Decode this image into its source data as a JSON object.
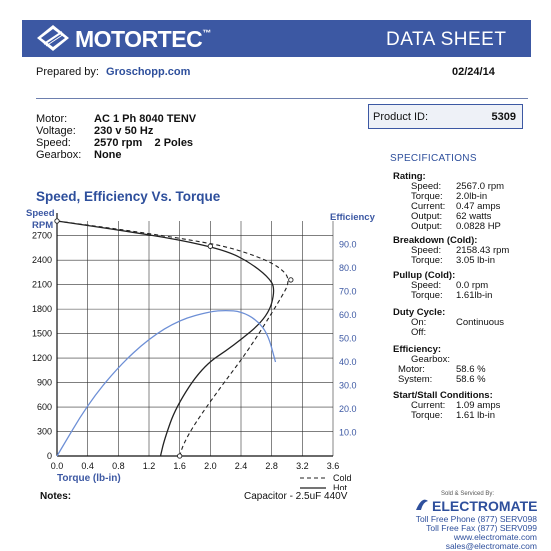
{
  "header": {
    "brand": "MOTORTEC",
    "brand_mark": "™",
    "title": "DATA SHEET"
  },
  "prepared": {
    "label": "Prepared by:",
    "value": "Groschopp.com"
  },
  "date": "02/24/14",
  "motor_info": [
    {
      "label": "Motor:",
      "value": "AC 1 Ph  8040 TENV"
    },
    {
      "label": "Voltage:",
      "value": "230 v 50 Hz"
    },
    {
      "label": "Speed:",
      "value": "2570 rpm    2 Poles"
    },
    {
      "label": "Gearbox:",
      "value": "None"
    }
  ],
  "product": {
    "label": "Product ID:",
    "value": "5309"
  },
  "specifications": {
    "title": "SPECIFICATIONS",
    "sections": [
      {
        "title": "Rating:",
        "rows": [
          {
            "k": "Speed:",
            "v": "2567.0 rpm"
          },
          {
            "k": "Torque:",
            "v": "2.0lb-in"
          },
          {
            "k": "Current:",
            "v": "0.47 amps"
          },
          {
            "k": "Output:",
            "v": "62 watts"
          },
          {
            "k": "Output:",
            "v": "0.0828 HP"
          }
        ]
      },
      {
        "title": "Breakdown (Cold):",
        "rows": [
          {
            "k": "Speed:",
            "v": "2158.43 rpm"
          },
          {
            "k": "Torque:",
            "v": "3.05 lb-in"
          }
        ]
      },
      {
        "title": "Pullup (Cold):",
        "rows": [
          {
            "k": "Speed:",
            "v": "0.0 rpm"
          },
          {
            "k": "Torque:",
            "v": "1.61lb-in"
          }
        ]
      },
      {
        "title": "Duty Cycle:",
        "rows": [
          {
            "k": "On:",
            "v": "Continuous"
          },
          {
            "k": "Off:",
            "v": ""
          }
        ]
      },
      {
        "title": "Efficiency:",
        "rows": [
          {
            "k": "Gearbox:",
            "v": ""
          },
          {
            "k": "Motor:",
            "v": "58.6 %"
          },
          {
            "k": "System:",
            "v": "58.6 %"
          }
        ]
      },
      {
        "title": "Start/Stall Conditions:",
        "rows": [
          {
            "k": "Current:",
            "v": "1.09 amps"
          },
          {
            "k": "Torque:",
            "v": "1.61 lb-in"
          }
        ]
      }
    ]
  },
  "chart_data": {
    "type": "line",
    "title": "Speed, Efficiency Vs. Torque",
    "xlabel": "Torque  (lb-in)",
    "ylabel_left": "Speed RPM",
    "ylabel_right": "Efficiency",
    "xlim": [
      0,
      3.6
    ],
    "ylim": [
      0,
      2880
    ],
    "y2lim": [
      0,
      100
    ],
    "x_ticks": [
      "0.0",
      "0.4",
      "0.8",
      "1.2",
      "1.6",
      "2.0",
      "2.4",
      "2.8",
      "3.2",
      "3.6"
    ],
    "y_ticks": [
      "0",
      "300",
      "600",
      "900",
      "1200",
      "1500",
      "1800",
      "2100",
      "2400",
      "2700"
    ],
    "y2_ticks": [
      "10.0",
      "20.0",
      "30.0",
      "40.0",
      "50.0",
      "60.0",
      "70.0",
      "80.0",
      "90.0"
    ],
    "grid": true,
    "legend_position": "bottom-right",
    "series": [
      {
        "name": "Cold",
        "axis": "left",
        "style": "dashed",
        "x": [
          0.0,
          0.8,
          1.6,
          2.2,
          2.6,
          2.9,
          3.05,
          2.9,
          2.5,
          2.1,
          1.8,
          1.65,
          1.6
        ],
        "y": [
          2880,
          2780,
          2670,
          2570,
          2450,
          2320,
          2158,
          1900,
          1300,
          800,
          400,
          150,
          0
        ]
      },
      {
        "name": "Hot",
        "axis": "left",
        "style": "solid",
        "x": [
          0.0,
          0.8,
          1.6,
          2.2,
          2.5,
          2.75,
          2.85,
          2.75,
          2.3,
          1.9,
          1.55,
          1.4,
          1.35
        ],
        "y": [
          2880,
          2770,
          2650,
          2520,
          2380,
          2200,
          2050,
          1700,
          1350,
          1100,
          600,
          200,
          0
        ]
      },
      {
        "name": "",
        "axis": "right",
        "style": "solid-blue",
        "x": [
          0.0,
          0.4,
          0.8,
          1.2,
          1.6,
          2.0,
          2.2,
          2.4,
          2.6,
          2.75,
          2.85
        ],
        "y": [
          0,
          22,
          38,
          50,
          58,
          61.5,
          62,
          61.5,
          58,
          52,
          40
        ]
      }
    ],
    "markers": [
      {
        "x": 0.0,
        "y": 2880
      },
      {
        "x": 2.0,
        "y": 2570
      },
      {
        "x": 3.05,
        "y": 2158
      },
      {
        "x": 1.6,
        "y": 0
      }
    ]
  },
  "footer": {
    "notes_label": "Notes:",
    "capacitor": "Capacitor - 2.5uF 440V",
    "sold_by": "Sold & Serviced By:",
    "distributor": "ELECTROMATE",
    "contacts": [
      "Toll Free Phone  (877) SERV098",
      "Toll Free Fax  (877) SERV099",
      "www.electromate.com",
      "sales@electromate.com"
    ]
  },
  "colors": {
    "brand_blue": "#3c58a3",
    "accent_blue": "#2e4f9c",
    "eff_curve": "#6d8fd6"
  }
}
